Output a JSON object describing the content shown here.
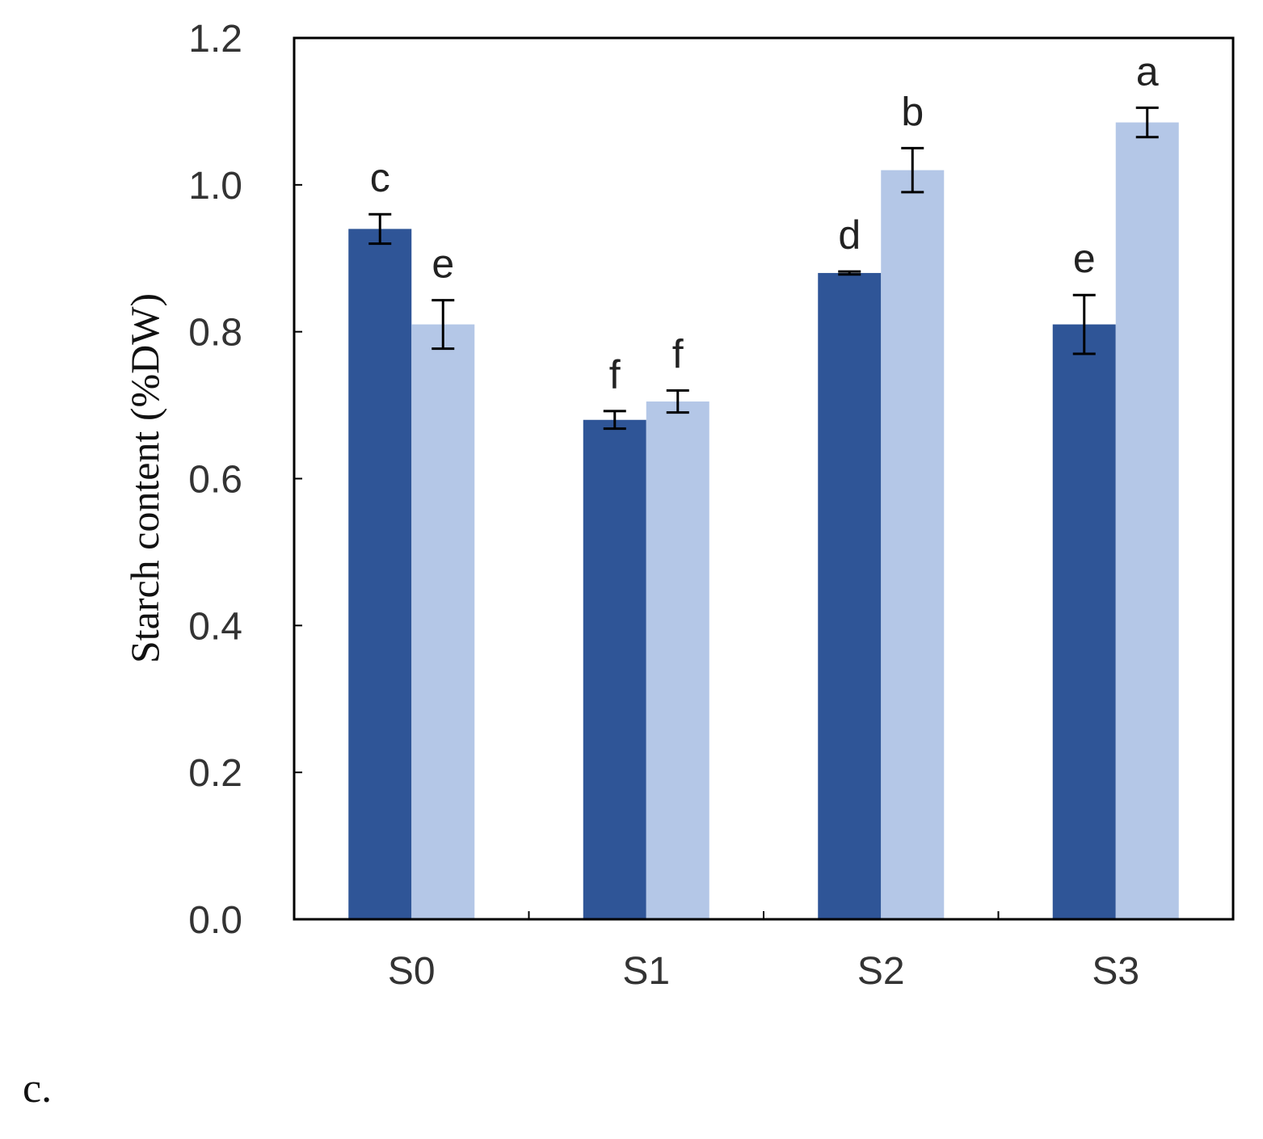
{
  "panel_label": "c.",
  "chart_data": {
    "type": "bar",
    "title": "",
    "xlabel": "",
    "ylabel": "Starch content (%DW)",
    "categories": [
      "S0",
      "S1",
      "S2",
      "S3"
    ],
    "ylim": [
      0,
      1.2
    ],
    "yticks": [
      "0.0",
      "0.2",
      "0.4",
      "0.6",
      "0.8",
      "1.0",
      "1.2"
    ],
    "grid": false,
    "legend": "none",
    "series": [
      {
        "color": "#2F5597",
        "values": [
          0.94,
          0.68,
          0.88,
          0.81
        ],
        "errors": [
          0.02,
          0.012,
          0.002,
          0.04
        ],
        "letters": [
          "c",
          "f",
          "d",
          "e"
        ]
      },
      {
        "color": "#B4C7E7",
        "values": [
          0.81,
          0.705,
          1.02,
          1.085
        ],
        "errors": [
          0.033,
          0.015,
          0.03,
          0.02
        ],
        "letters": [
          "e",
          "f",
          "b",
          "a"
        ]
      }
    ]
  }
}
